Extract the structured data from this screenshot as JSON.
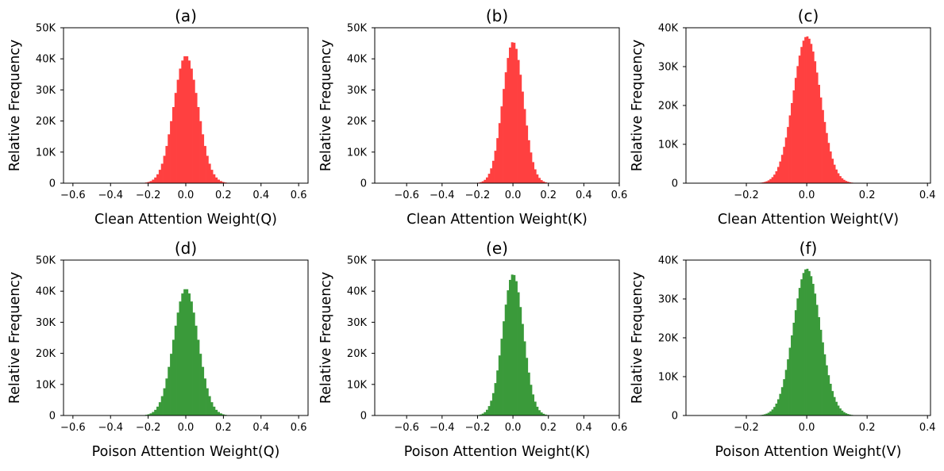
{
  "figure": {
    "background": "#ffffff"
  },
  "chart_data": [
    {
      "type": "bar",
      "title": "(a)",
      "xlabel": "Clean Attention Weight(Q)",
      "ylabel": "Relative Frequency",
      "color": "#ff4040",
      "xlim": [
        -0.65,
        0.65
      ],
      "ylim": [
        0,
        50000
      ],
      "xticks": [
        -0.6,
        -0.4,
        -0.2,
        0.0,
        0.2,
        0.4,
        0.6
      ],
      "xtick_labels": [
        "−0.6",
        "−0.4",
        "−0.2",
        "0.0",
        "0.2",
        "0.4",
        "0.6"
      ],
      "yticks": [
        0,
        10000,
        20000,
        30000,
        40000,
        50000
      ],
      "ytick_labels": [
        "0",
        "10K",
        "20K",
        "30K",
        "40K",
        "50K"
      ],
      "distribution": {
        "center": 0.0,
        "sigma": 0.065,
        "peak": 41000,
        "range": [
          -0.6,
          0.6
        ],
        "bins": 100
      }
    },
    {
      "type": "bar",
      "title": "(b)",
      "xlabel": "Clean Attention Weight(K)",
      "ylabel": "Relative Frequency",
      "color": "#ff4040",
      "xlim": [
        -0.78,
        0.6
      ],
      "ylim": [
        0,
        50000
      ],
      "xticks": [
        -0.6,
        -0.4,
        -0.2,
        0.0,
        0.2,
        0.4,
        0.6
      ],
      "xtick_labels": [
        "−0.6",
        "−0.4",
        "−0.2",
        "0.0",
        "0.2",
        "0.4",
        "0.6"
      ],
      "yticks": [
        0,
        10000,
        20000,
        30000,
        40000,
        50000
      ],
      "ytick_labels": [
        "0",
        "10K",
        "20K",
        "30K",
        "40K",
        "50K"
      ],
      "distribution": {
        "center": 0.0,
        "sigma": 0.058,
        "peak": 45500,
        "range": [
          -0.72,
          0.58
        ],
        "bins": 110
      }
    },
    {
      "type": "bar",
      "title": "(c)",
      "xlabel": "Clean Attention Weight(V)",
      "ylabel": "Relative Frequency",
      "color": "#ff4040",
      "xlim": [
        -0.4,
        0.41
      ],
      "ylim": [
        0,
        40000
      ],
      "xticks": [
        -0.2,
        0.0,
        0.2,
        0.4
      ],
      "xtick_labels": [
        "−0.2",
        "0.0",
        "0.2",
        "0.4"
      ],
      "yticks": [
        0,
        10000,
        20000,
        30000,
        40000
      ],
      "ytick_labels": [
        "0",
        "10K",
        "20K",
        "30K",
        "40K"
      ],
      "distribution": {
        "center": 0.0,
        "sigma": 0.045,
        "peak": 37800,
        "range": [
          -0.38,
          0.39
        ],
        "bins": 120
      }
    },
    {
      "type": "bar",
      "title": "(d)",
      "xlabel": "Poison Attention Weight(Q)",
      "ylabel": "Relative Frequency",
      "color": "#3a9a3a",
      "xlim": [
        -0.65,
        0.65
      ],
      "ylim": [
        0,
        50000
      ],
      "xticks": [
        -0.6,
        -0.4,
        -0.2,
        0.0,
        0.2,
        0.4,
        0.6
      ],
      "xtick_labels": [
        "−0.6",
        "−0.4",
        "−0.2",
        "0.0",
        "0.2",
        "0.4",
        "0.6"
      ],
      "yticks": [
        0,
        10000,
        20000,
        30000,
        40000,
        50000
      ],
      "ytick_labels": [
        "0",
        "10K",
        "20K",
        "30K",
        "40K",
        "50K"
      ],
      "distribution": {
        "center": 0.0,
        "sigma": 0.065,
        "peak": 40800,
        "range": [
          -0.6,
          0.6
        ],
        "bins": 100
      }
    },
    {
      "type": "bar",
      "title": "(e)",
      "xlabel": "Poison Attention Weight(K)",
      "ylabel": "Relative Frequency",
      "color": "#3a9a3a",
      "xlim": [
        -0.78,
        0.6
      ],
      "ylim": [
        0,
        50000
      ],
      "xticks": [
        -0.6,
        -0.4,
        -0.2,
        0.0,
        0.2,
        0.4,
        0.6
      ],
      "xtick_labels": [
        "−0.6",
        "−0.4",
        "−0.2",
        "0.0",
        "0.2",
        "0.4",
        "0.6"
      ],
      "yticks": [
        0,
        10000,
        20000,
        30000,
        40000,
        50000
      ],
      "ytick_labels": [
        "0",
        "10K",
        "20K",
        "30K",
        "40K",
        "50K"
      ],
      "distribution": {
        "center": 0.0,
        "sigma": 0.058,
        "peak": 45500,
        "range": [
          -0.72,
          0.58
        ],
        "bins": 110
      }
    },
    {
      "type": "bar",
      "title": "(f)",
      "xlabel": "Poison Attention Weight(V)",
      "ylabel": "Relative Frequency",
      "color": "#3a9a3a",
      "xlim": [
        -0.4,
        0.41
      ],
      "ylim": [
        0,
        40000
      ],
      "xticks": [
        -0.2,
        0.0,
        0.2,
        0.4
      ],
      "xtick_labels": [
        "−0.2",
        "0.0",
        "0.2",
        "0.4"
      ],
      "yticks": [
        0,
        10000,
        20000,
        30000,
        40000
      ],
      "ytick_labels": [
        "0",
        "10K",
        "20K",
        "30K",
        "40K"
      ],
      "distribution": {
        "center": 0.0,
        "sigma": 0.045,
        "peak": 37800,
        "range": [
          -0.38,
          0.39
        ],
        "bins": 120
      }
    }
  ]
}
